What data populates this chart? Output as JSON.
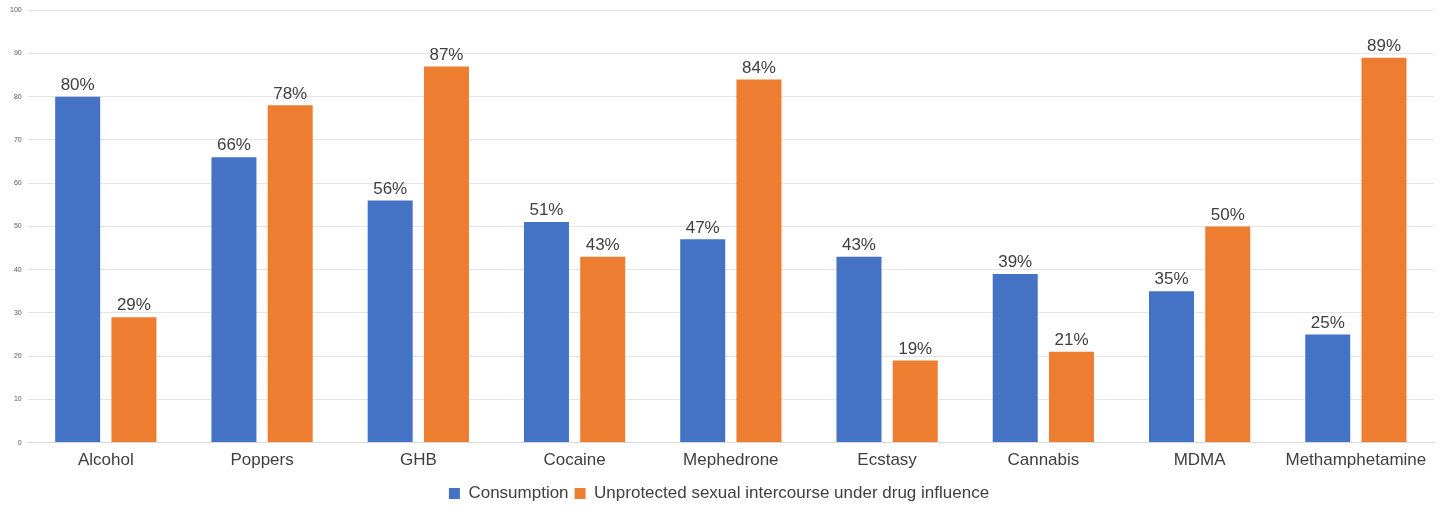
{
  "chart_data": {
    "type": "bar",
    "categories": [
      "Alcohol",
      "Poppers",
      "GHB",
      "Cocaine",
      "Mephedrone",
      "Ecstasy",
      "Cannabis",
      "MDMA",
      "Methamphetamine"
    ],
    "series": [
      {
        "name": "Consumption",
        "color": "#4472c4",
        "values": [
          80,
          66,
          56,
          51,
          47,
          43,
          39,
          35,
          25
        ],
        "value_labels": [
          "80%",
          "66%",
          "56%",
          "51%",
          "47%",
          "43%",
          "39%",
          "35%",
          "25%"
        ]
      },
      {
        "name": "Unprotected sexual intercourse under drug influence",
        "color": "#ed7d31",
        "values": [
          29,
          78,
          87,
          43,
          84,
          19,
          21,
          50,
          89
        ],
        "value_labels": [
          "29%",
          "78%",
          "87%",
          "43%",
          "84%",
          "19%",
          "21%",
          "50%",
          "89%"
        ]
      }
    ],
    "ylim": [
      0,
      100
    ],
    "yticks": [
      0,
      10,
      20,
      30,
      40,
      50,
      60,
      70,
      80,
      90,
      100
    ],
    "grid": "y",
    "legend": "bottom"
  }
}
